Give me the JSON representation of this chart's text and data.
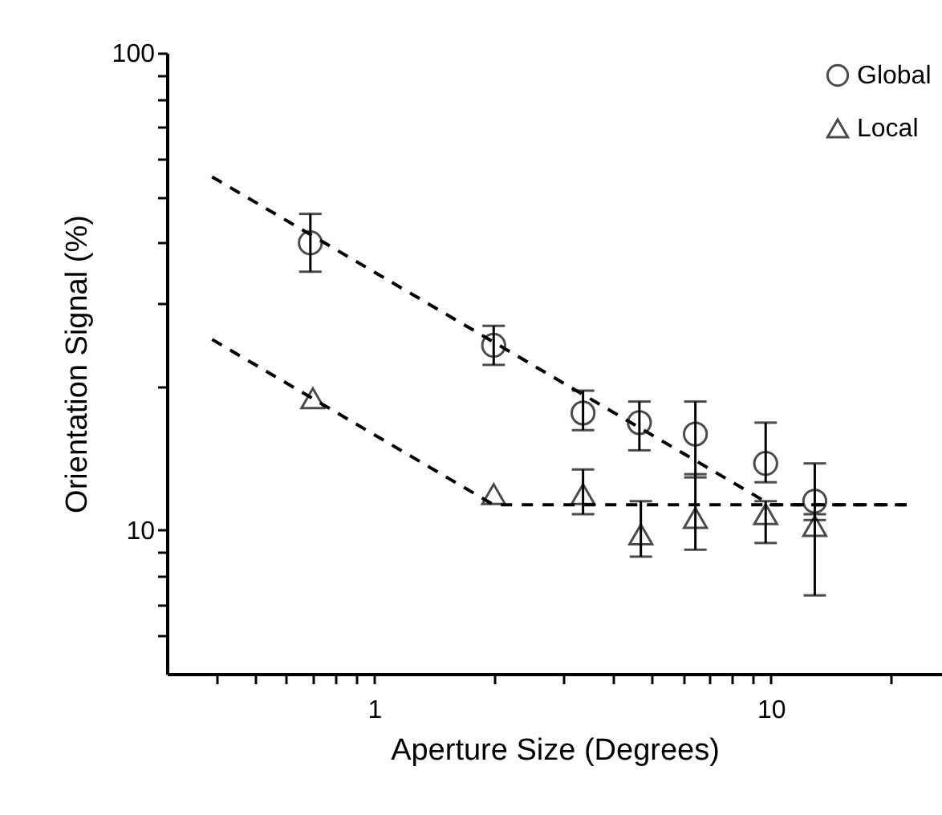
{
  "chart_data": {
    "type": "scatter",
    "xlabel": "Aperture Size (Degrees)",
    "ylabel": "Orientation Signal (%)",
    "log": "xy",
    "xlim": [
      0.3,
      27
    ],
    "ylim": [
      5,
      100
    ],
    "xticks": [
      {
        "value": 0.4,
        "label": null
      },
      {
        "value": 0.5,
        "label": null
      },
      {
        "value": 0.6,
        "label": null
      },
      {
        "value": 0.7,
        "label": null
      },
      {
        "value": 0.8,
        "label": null
      },
      {
        "value": 0.9,
        "label": null
      },
      1,
      {
        "value": 2,
        "label": null
      },
      {
        "value": 3,
        "label": null
      },
      {
        "value": 4,
        "label": null
      },
      {
        "value": 5,
        "label": null
      },
      {
        "value": 6,
        "label": null
      },
      {
        "value": 7,
        "label": null
      },
      {
        "value": 8,
        "label": null
      },
      {
        "value": 9,
        "label": null
      },
      10,
      {
        "value": 20,
        "label": null
      }
    ],
    "yticks": [
      {
        "value": 6,
        "label": null
      },
      {
        "value": 7,
        "label": null
      },
      {
        "value": 8,
        "label": null
      },
      {
        "value": 9,
        "label": null
      },
      10,
      {
        "value": 20,
        "label": null
      },
      {
        "value": 30,
        "label": null
      },
      {
        "value": 40,
        "label": null
      },
      {
        "value": 50,
        "label": null
      },
      {
        "value": 60,
        "label": null
      },
      {
        "value": 70,
        "label": null
      },
      {
        "value": 80,
        "label": null
      },
      {
        "value": 90,
        "label": null
      },
      100
    ],
    "grid": false,
    "legend": "top right",
    "series": [
      {
        "name": "Global",
        "color": "#000000",
        "marker": "circle",
        "x": [
          0.69,
          2,
          3.36,
          4.66,
          6.45,
          9.7,
          12.9
        ],
        "values": [
          40,
          24.4,
          17.6,
          16.8,
          15.9,
          13.8,
          11.5
        ],
        "errors": [
          [
            34.8,
            46
          ],
          [
            22.2,
            26.8
          ],
          [
            16.2,
            19.6
          ],
          [
            14.7,
            18.6
          ],
          [
            12.9,
            18.6
          ],
          [
            12.6,
            16.8
          ],
          [
            10.5,
            13.8
          ]
        ]
      },
      {
        "name": "Local",
        "color": "#000000",
        "marker": "triangle",
        "x": [
          0.7,
          2,
          3.36,
          4.7,
          6.45,
          9.7,
          12.9
        ],
        "values": [
          18.9,
          11.9,
          11.9,
          9.8,
          10.6,
          10.8,
          10.2
        ],
        "errors": [
          null,
          null,
          [
            10.8,
            13.4
          ],
          [
            8.8,
            11.5
          ],
          [
            9.1,
            13.1
          ],
          [
            9.4,
            11.5
          ],
          [
            7.3,
            10.8
          ]
        ]
      },
      {
        "type": "line",
        "color": "#000000",
        "line_style": "dashed",
        "x": [
          0.39,
          10,
          22
        ],
        "values": [
          55,
          11.3,
          11.3
        ]
      },
      {
        "type": "line",
        "color": "#000000",
        "line_style": "dashed",
        "x": [
          0.39,
          2,
          22
        ],
        "values": [
          25.1,
          11.3,
          11.3
        ]
      }
    ]
  }
}
